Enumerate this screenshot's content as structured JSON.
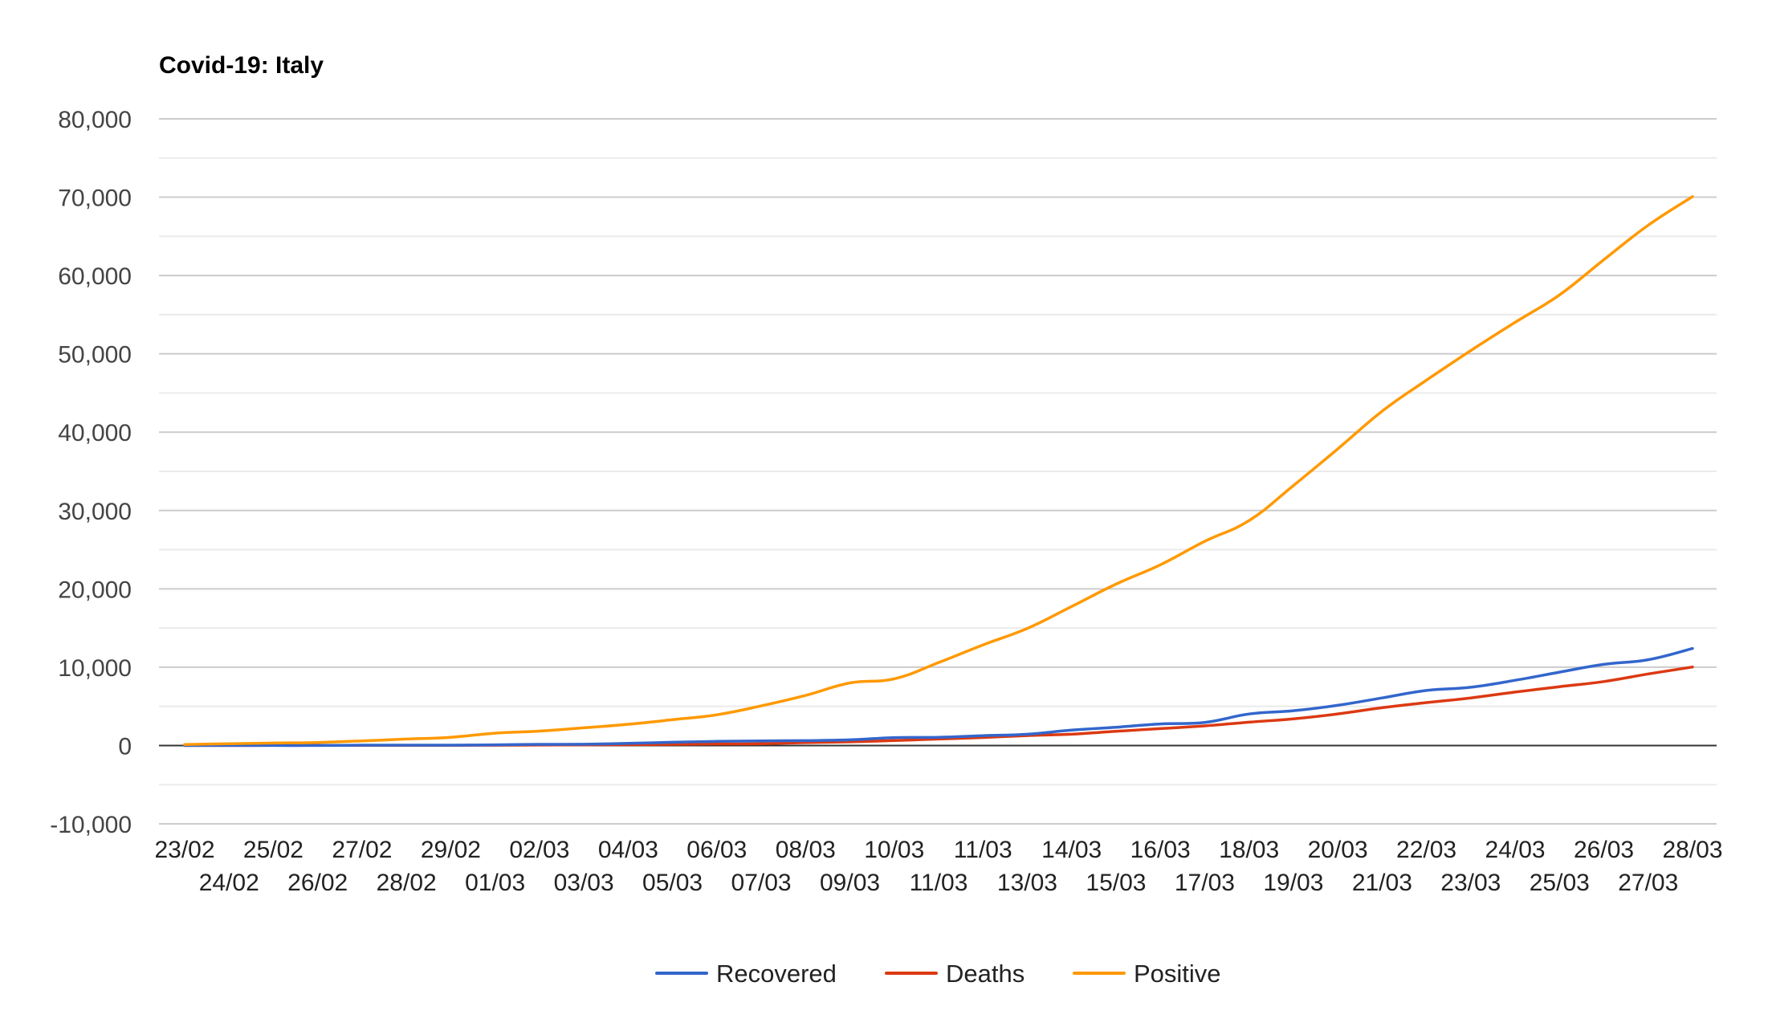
{
  "chart_data": {
    "type": "line",
    "title": "Covid-19: Italy",
    "xlabel": "",
    "ylabel": "",
    "ylim": [
      -10000,
      80000
    ],
    "yticks": [
      "-10,000",
      "0",
      "10,000",
      "20,000",
      "30,000",
      "40,000",
      "50,000",
      "60,000",
      "70,000",
      "80,000"
    ],
    "ytick_values": [
      -10000,
      0,
      10000,
      20000,
      30000,
      40000,
      50000,
      60000,
      70000,
      80000
    ],
    "grid": true,
    "legend": "bottom",
    "categories": [
      "23/02",
      "24/02",
      "25/02",
      "26/02",
      "27/02",
      "28/02",
      "29/02",
      "01/03",
      "02/03",
      "03/03",
      "04/03",
      "05/03",
      "06/03",
      "07/03",
      "08/03",
      "09/03",
      "10/03",
      "11/03",
      "11/03",
      "13/03",
      "14/03",
      "15/03",
      "16/03",
      "17/03",
      "18/03",
      "19/03",
      "20/03",
      "21/03",
      "22/03",
      "23/03",
      "24/03",
      "25/03",
      "26/03",
      "27/03",
      "28/03"
    ],
    "series": [
      {
        "name": "Recovered",
        "color": "#3366cc",
        "values": [
          0,
          0,
          1,
          3,
          45,
          46,
          46,
          83,
          149,
          160,
          276,
          414,
          523,
          589,
          622,
          724,
          1004,
          1045,
          1258,
          1439,
          1966,
          2335,
          2749,
          2941,
          4025,
          4440,
          5129,
          6072,
          7024,
          7432,
          8326,
          9362,
          10361,
          10950,
          12384
        ]
      },
      {
        "name": "Deaths",
        "color": "#dc3912",
        "values": [
          3,
          7,
          10,
          12,
          17,
          21,
          29,
          34,
          52,
          79,
          107,
          148,
          197,
          233,
          366,
          463,
          631,
          827,
          1016,
          1266,
          1441,
          1809,
          2158,
          2503,
          2978,
          3405,
          4032,
          4825,
          5476,
          6077,
          6820,
          7503,
          8165,
          9134,
          10023
        ]
      },
      {
        "name": "Positive",
        "color": "#ff9900",
        "values": [
          132,
          221,
          311,
          385,
          588,
          821,
          1049,
          1577,
          1835,
          2263,
          2706,
          3296,
          3916,
          5061,
          6387,
          7985,
          8514,
          10590,
          12839,
          14955,
          17750,
          20603,
          23073,
          26062,
          28710,
          33190,
          37860,
          42681,
          46638,
          50418,
          54030,
          57521,
          62013,
          66414,
          70065
        ]
      }
    ]
  }
}
